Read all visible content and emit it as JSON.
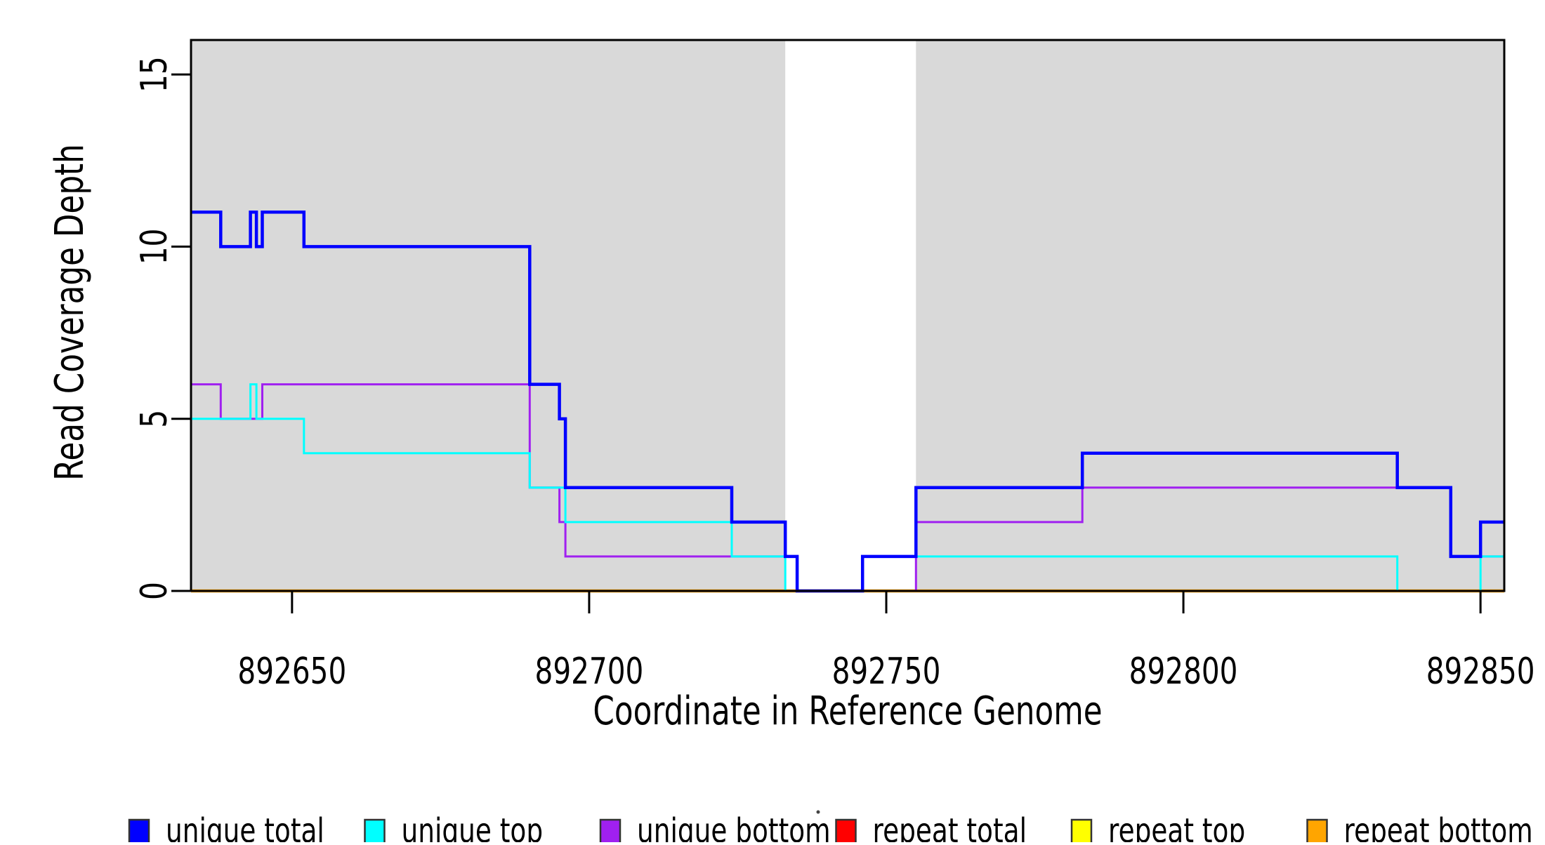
{
  "chart_data": {
    "type": "line",
    "step": true,
    "title": "",
    "xlabel": "Coordinate in Reference Genome",
    "ylabel": "Read Coverage Depth",
    "xlim": [
      892633,
      892854
    ],
    "ylim": [
      0,
      16
    ],
    "grid": false,
    "background_color": "#ffffff",
    "plot_border_color": "#000000",
    "x_ticks": [
      892650,
      892700,
      892750,
      892800,
      892850
    ],
    "x_tick_labels": [
      "892650",
      "892700",
      "892750",
      "892800",
      "892850"
    ],
    "y_ticks": [
      0,
      5,
      10,
      15
    ],
    "y_tick_labels": [
      "0",
      "5",
      "10",
      "15"
    ],
    "shaded_regions": [
      {
        "name": "unique-region-left",
        "x0": 892633,
        "x1": 892733,
        "color": "#d9d9d9"
      },
      {
        "name": "unique-region-right",
        "x0": 892755,
        "x1": 892854,
        "color": "#d9d9d9"
      }
    ],
    "series": [
      {
        "name": "repeat total",
        "color": "#ff0000",
        "width": 3,
        "points": [
          [
            892633,
            0
          ],
          [
            892854,
            0
          ]
        ]
      },
      {
        "name": "repeat top",
        "color": "#ffff00",
        "width": 3,
        "points": [
          [
            892633,
            0
          ],
          [
            892854,
            0
          ]
        ]
      },
      {
        "name": "repeat bottom",
        "color": "#ffa500",
        "width": 4.5,
        "points": [
          [
            892633,
            0
          ],
          [
            892854,
            0
          ]
        ]
      },
      {
        "name": "unique bottom",
        "color": "#a020f0",
        "width": 3,
        "points": [
          [
            892633,
            6
          ],
          [
            892638,
            5
          ],
          [
            892645,
            6
          ],
          [
            892690,
            3
          ],
          [
            892695,
            2
          ],
          [
            892696,
            1
          ],
          [
            892735,
            0
          ],
          [
            892755,
            2
          ],
          [
            892783,
            3
          ],
          [
            892845,
            1
          ],
          [
            892854,
            1
          ]
        ]
      },
      {
        "name": "unique top",
        "color": "#00ffff",
        "width": 3,
        "points": [
          [
            892633,
            5
          ],
          [
            892643,
            6
          ],
          [
            892644,
            5
          ],
          [
            892652,
            4
          ],
          [
            892690,
            3
          ],
          [
            892696,
            2
          ],
          [
            892724,
            1
          ],
          [
            892733,
            0
          ],
          [
            892746,
            1
          ],
          [
            892836,
            0
          ],
          [
            892850,
            1
          ],
          [
            892854,
            1
          ]
        ]
      },
      {
        "name": "unique total",
        "color": "#0000ff",
        "width": 4.5,
        "points": [
          [
            892633,
            11
          ],
          [
            892638,
            10
          ],
          [
            892643,
            11
          ],
          [
            892644,
            10
          ],
          [
            892645,
            11
          ],
          [
            892652,
            10
          ],
          [
            892690,
            6
          ],
          [
            892695,
            5
          ],
          [
            892696,
            3
          ],
          [
            892724,
            2
          ],
          [
            892733,
            1
          ],
          [
            892735,
            0
          ],
          [
            892746,
            1
          ],
          [
            892755,
            3
          ],
          [
            892783,
            4
          ],
          [
            892836,
            3
          ],
          [
            892845,
            1
          ],
          [
            892850,
            2
          ],
          [
            892854,
            2
          ]
        ]
      }
    ],
    "legend": {
      "position": "bottom",
      "entries": [
        {
          "label": "unique total",
          "color": "#0000ff"
        },
        {
          "label": "unique top",
          "color": "#00ffff"
        },
        {
          "label": "unique bottom",
          "color": "#a020f0"
        },
        {
          "label": "repeat total",
          "color": "#ff0000"
        },
        {
          "label": "repeat top",
          "color": "#ffff00"
        },
        {
          "label": "repeat bottom",
          "color": "#ffa500"
        }
      ]
    }
  }
}
